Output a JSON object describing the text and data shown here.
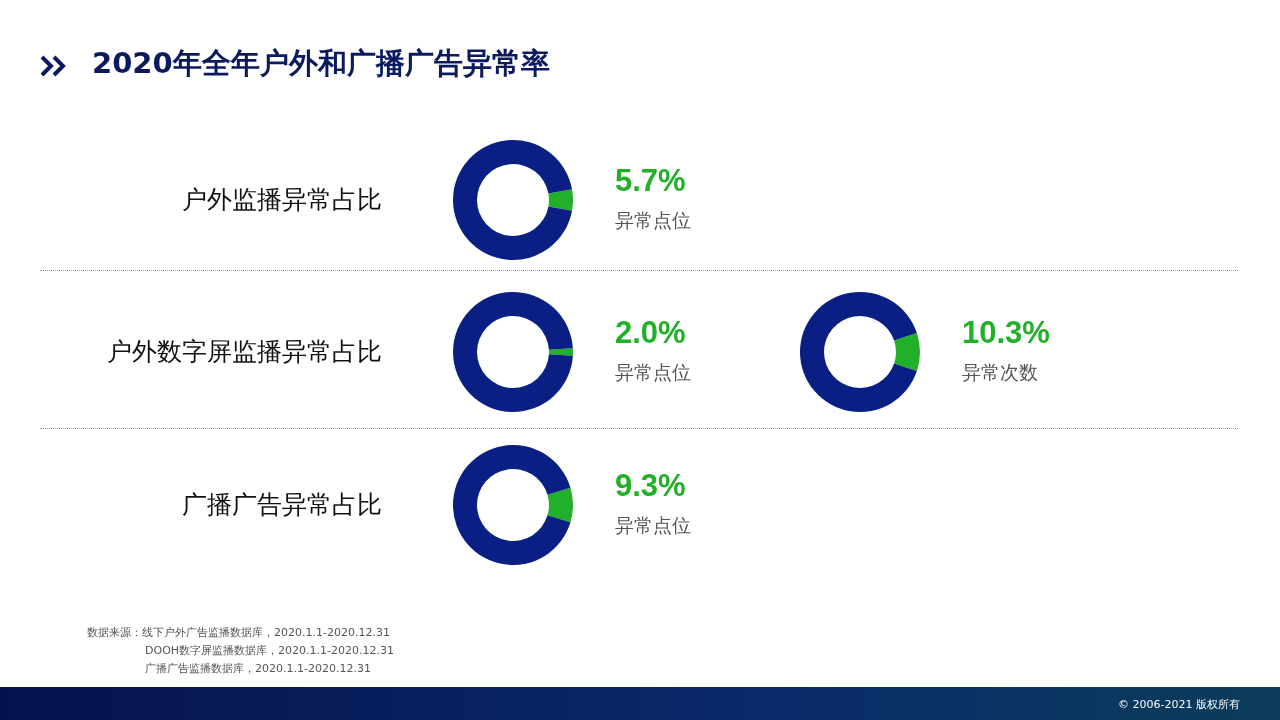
{
  "chart_data": [
    {
      "type": "donut",
      "title": "2020年全年户外和广播广告异常率",
      "subtitle": "户外监播异常占比",
      "categories": [
        "异常点位",
        null
      ],
      "values": [
        5.7,
        94.3
      ],
      "colors": [
        "#22b02a",
        "#0a1f84"
      ],
      "value_labels": [
        "5.7%",
        null
      ]
    },
    {
      "type": "donut",
      "subtitle": "户外数字屏监播异常占比",
      "categories": [
        "异常点位",
        null
      ],
      "values": [
        2.0,
        98.0
      ],
      "colors": [
        "#22b02a",
        "#0a1f84"
      ],
      "value_labels": [
        "2.0%",
        null
      ]
    },
    {
      "type": "donut",
      "categories": [
        "异常次数",
        null
      ],
      "values": [
        10.3,
        89.7
      ],
      "colors": [
        "#22b02a",
        "#0a1f84"
      ],
      "value_labels": [
        "10.3%",
        null
      ]
    },
    {
      "type": "donut",
      "subtitle": "广播广告异常占比",
      "categories": [
        "异常点位",
        null
      ],
      "values": [
        9.3,
        90.7
      ],
      "colors": [
        "#22b02a",
        "#0a1f84"
      ],
      "value_labels": [
        "9.3%",
        null
      ],
      "annotations": [
        "数据来源：线下户外广告监播数据库，2020.1.1-2020.12.31",
        "DOOH数字屏监播数据库，2020.1.1-2020.12.31",
        "广播广告监播数据库，2020.1.1-2020.12.31",
        "© 2006-2021 版权所有"
      ]
    }
  ]
}
